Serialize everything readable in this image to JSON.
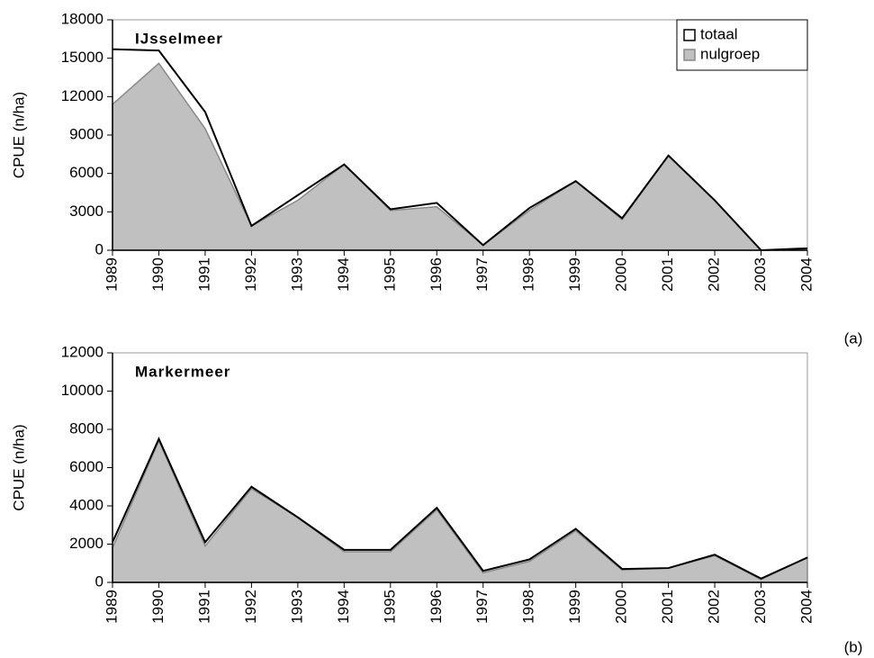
{
  "chart_data": [
    {
      "type": "area",
      "title": "IJsselmeer",
      "annotation": "(a)",
      "y_label": "CPUE (n/ha)",
      "categories": [
        "1989",
        "1990",
        "1991",
        "1992",
        "1993",
        "1994",
        "1995",
        "1996",
        "1997",
        "1998",
        "1999",
        "2000",
        "2001",
        "2002",
        "2003",
        "2004"
      ],
      "series": [
        {
          "name": "nulgroep",
          "style": "area",
          "color": "#c0c0c0",
          "values": [
            11400,
            14600,
            9500,
            1900,
            3900,
            6700,
            3100,
            3400,
            400,
            3100,
            5400,
            2400,
            7400,
            3900,
            0,
            0
          ]
        },
        {
          "name": "totaal",
          "style": "line",
          "color": "#000000",
          "values": [
            15700,
            15600,
            10800,
            1900,
            4300,
            6700,
            3200,
            3700,
            400,
            3300,
            5400,
            2500,
            7400,
            3900,
            0,
            150
          ]
        }
      ],
      "ylim": [
        0,
        18000
      ],
      "yticks": [
        0,
        3000,
        6000,
        9000,
        12000,
        15000,
        18000
      ],
      "legend": "upper right"
    },
    {
      "type": "area",
      "title": "Markermeer",
      "annotation": "(b)",
      "y_label": "CPUE (n/ha)",
      "categories": [
        "1989",
        "1990",
        "1991",
        "1992",
        "1993",
        "1994",
        "1995",
        "1996",
        "1997",
        "1998",
        "1999",
        "2000",
        "2001",
        "2002",
        "2003",
        "2004"
      ],
      "series": [
        {
          "style": "area",
          "color": "#c0c0c0",
          "values": [
            1800,
            7400,
            1900,
            4900,
            3400,
            1600,
            1600,
            3800,
            500,
            1100,
            2700,
            650,
            750,
            1400,
            150,
            1300
          ]
        },
        {
          "style": "line",
          "color": "#000000",
          "values": [
            2100,
            7500,
            2100,
            5000,
            3400,
            1700,
            1700,
            3900,
            600,
            1200,
            2800,
            700,
            750,
            1450,
            200,
            1300
          ]
        }
      ],
      "ylim": [
        0,
        12000
      ],
      "yticks": [
        0,
        2000,
        4000,
        6000,
        8000,
        10000,
        12000
      ]
    }
  ]
}
